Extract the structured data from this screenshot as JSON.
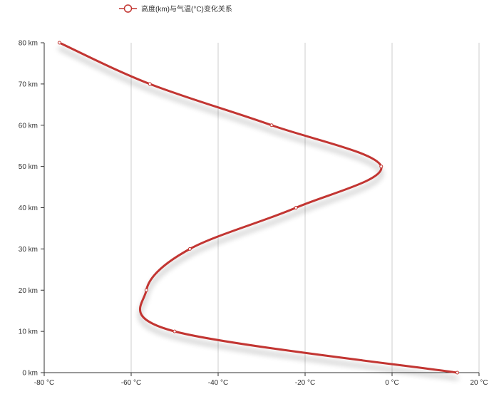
{
  "chart_data": {
    "type": "line",
    "legend": {
      "entries": [
        "高度(km)与气温(°C)变化关系"
      ],
      "placement": "top-left"
    },
    "x_axis": {
      "label": "",
      "unit": "°C",
      "range": [
        -80,
        20
      ],
      "ticks": [
        -80,
        -60,
        -40,
        -20,
        0,
        20
      ],
      "tick_labels": [
        "-80 °C",
        "-60 °C",
        "-40 °C",
        "-20 °C",
        "0 °C",
        "20 °C"
      ],
      "grid": true
    },
    "y_axis": {
      "label": "",
      "unit": "km",
      "range": [
        0,
        80
      ],
      "ticks": [
        0,
        10,
        20,
        30,
        40,
        50,
        60,
        70,
        80
      ],
      "tick_labels": [
        "0 km",
        "10 km",
        "20 km",
        "30 km",
        "40 km",
        "50 km",
        "60 km",
        "70 km",
        "80 km"
      ],
      "grid": false
    },
    "series": [
      {
        "name": "高度(km)与气温(°C)变化关系",
        "color": "#c23531",
        "smooth": true,
        "shadow": true,
        "points": [
          {
            "altitude_km": 0,
            "temp_c": 15
          },
          {
            "altitude_km": 10,
            "temp_c": -50
          },
          {
            "altitude_km": 20,
            "temp_c": -56.5
          },
          {
            "altitude_km": 30,
            "temp_c": -46.5
          },
          {
            "altitude_km": 40,
            "temp_c": -22.1
          },
          {
            "altitude_km": 50,
            "temp_c": -2.5
          },
          {
            "altitude_km": 60,
            "temp_c": -27.7
          },
          {
            "altitude_km": 70,
            "temp_c": -55.7
          },
          {
            "altitude_km": 80,
            "temp_c": -76.5
          }
        ]
      }
    ]
  }
}
